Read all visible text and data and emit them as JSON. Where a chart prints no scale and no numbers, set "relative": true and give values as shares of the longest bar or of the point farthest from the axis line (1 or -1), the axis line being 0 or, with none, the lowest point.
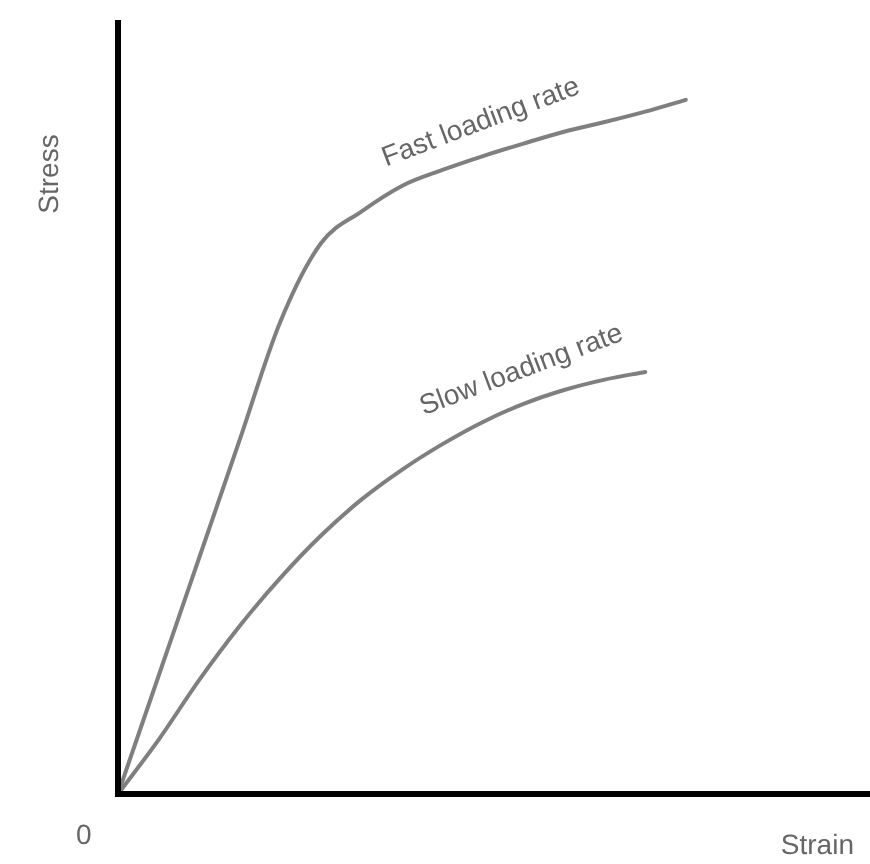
{
  "chart_data": {
    "type": "line",
    "relative": true,
    "xlabel": "Strain",
    "ylabel": "Stress",
    "annotations": [
      "0"
    ],
    "categories": [
      null,
      null,
      null,
      null,
      null,
      null,
      null,
      null,
      null,
      null,
      null,
      null,
      null,
      null,
      null,
      null,
      null,
      null,
      null
    ],
    "series": [
      {
        "name": "Fast loading rate",
        "color": "#7f7f7f",
        "values": [
          0,
          0.17,
          0.34,
          0.51,
          0.68,
          0.793,
          0.839,
          0.876,
          0.899,
          0.919,
          0.937,
          0.954,
          0.968,
          0.983,
          1,
          null,
          null,
          null,
          null
        ]
      },
      {
        "name": "Slow loading rate",
        "color": "#7f7f7f",
        "values": [
          0,
          0.078,
          0.164,
          0.242,
          0.311,
          0.372,
          0.424,
          0.467,
          0.504,
          0.536,
          0.562,
          0.582,
          0.597,
          0.608,
          null,
          null,
          null,
          null,
          null
        ]
      }
    ],
    "grid": false,
    "legend": false,
    "marker": "none",
    "line_style": "solid"
  }
}
